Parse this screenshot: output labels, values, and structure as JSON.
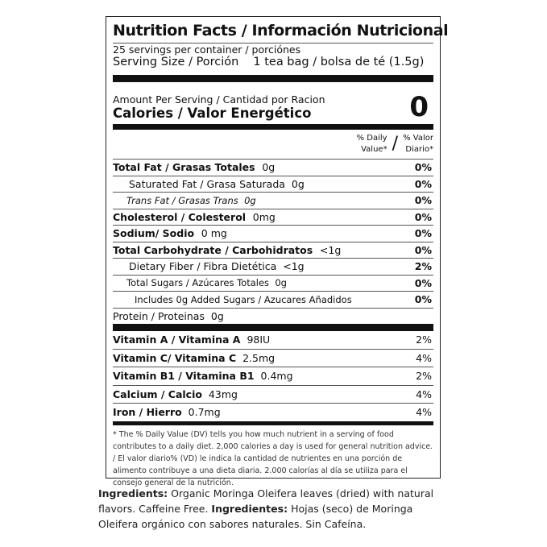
{
  "title": "Nutrition Facts / Información Nutricional",
  "servings": "25 servings per container / porciónes",
  "serving_size_label": "Serving Size / Porción",
  "serving_size_value": "1 tea bag / bolsa de té (1.5g)",
  "amount_per_serving": "Amount Per Serving / Cantidad por Racion",
  "calories_label": "Calories / Valor Energético",
  "calories_value": "0",
  "dv_header_en": "% Daily Value*",
  "dv_header_es": "% Valor Diario*",
  "nutrients": [
    {
      "label": "Total Fat / Grasas Totales",
      "amount": "0g",
      "dv": "0%"
    },
    {
      "label": "Saturated Fat / Grasa Saturada",
      "amount": "0g",
      "dv": "0%"
    },
    {
      "label": "Trans Fat / Grasas Trans",
      "amount": "0g",
      "dv": "0%"
    },
    {
      "label": "Cholesterol / Colesterol",
      "amount": "0mg",
      "dv": "0%"
    },
    {
      "label": "Sodium/ Sodio",
      "amount": "0 mg",
      "dv": "0%"
    },
    {
      "label": "Total Carbohydrate / Carbohidratos",
      "amount": "<1g",
      "dv": "0%"
    },
    {
      "label": "Dietary Fiber / Fibra Dietética",
      "amount": "<1g",
      "dv": "2%"
    },
    {
      "label": "Total Sugars / Azúcares Totales",
      "amount": "0g",
      "dv": "0%"
    },
    {
      "label": "Includes 0g Added Sugars / Azucares Añadidos",
      "amount": "",
      "dv": "0%"
    },
    {
      "label": "Protein / Proteinas",
      "amount": "0g",
      "dv": ""
    }
  ],
  "vitamins": [
    {
      "label": "Vitamin A / Vitamina A",
      "amount": "98IU",
      "dv": "2%"
    },
    {
      "label": "Vitamin C/ Vitamina C",
      "amount": "2.5mg",
      "dv": "4%"
    },
    {
      "label": "Vitamin B1 / Vitamina B1",
      "amount": "0.4mg",
      "dv": "2%"
    },
    {
      "label": "Calcium / Calcio",
      "amount": "43mg",
      "dv": "4%"
    },
    {
      "label": "Iron / Hierro",
      "amount": "0.7mg",
      "dv": "4%"
    }
  ],
  "footnote": "* The % Daily Value (DV) tells you how much nutrient in a serving of food contributes to a daily diet. 2,000 calories a day is used for general nutrition advice. / El valor diario% (VD) le indica la cantidad de nutrientes en una porción de alimento contribuye a una dieta diaria. 2.000 calorías al día se utiliza para el consejo general de la nutrición.",
  "ingredients": {
    "label_en": "Ingredients:",
    "text_en": "Organic Moringa Oleifera leaves (dried) with natural flavors. Caffeine Free.",
    "label_es": "Ingredientes:",
    "text_es": "Hojas (seco) de Moringa Oleifera orgánico con sabores naturales. Sin Cafeína."
  }
}
